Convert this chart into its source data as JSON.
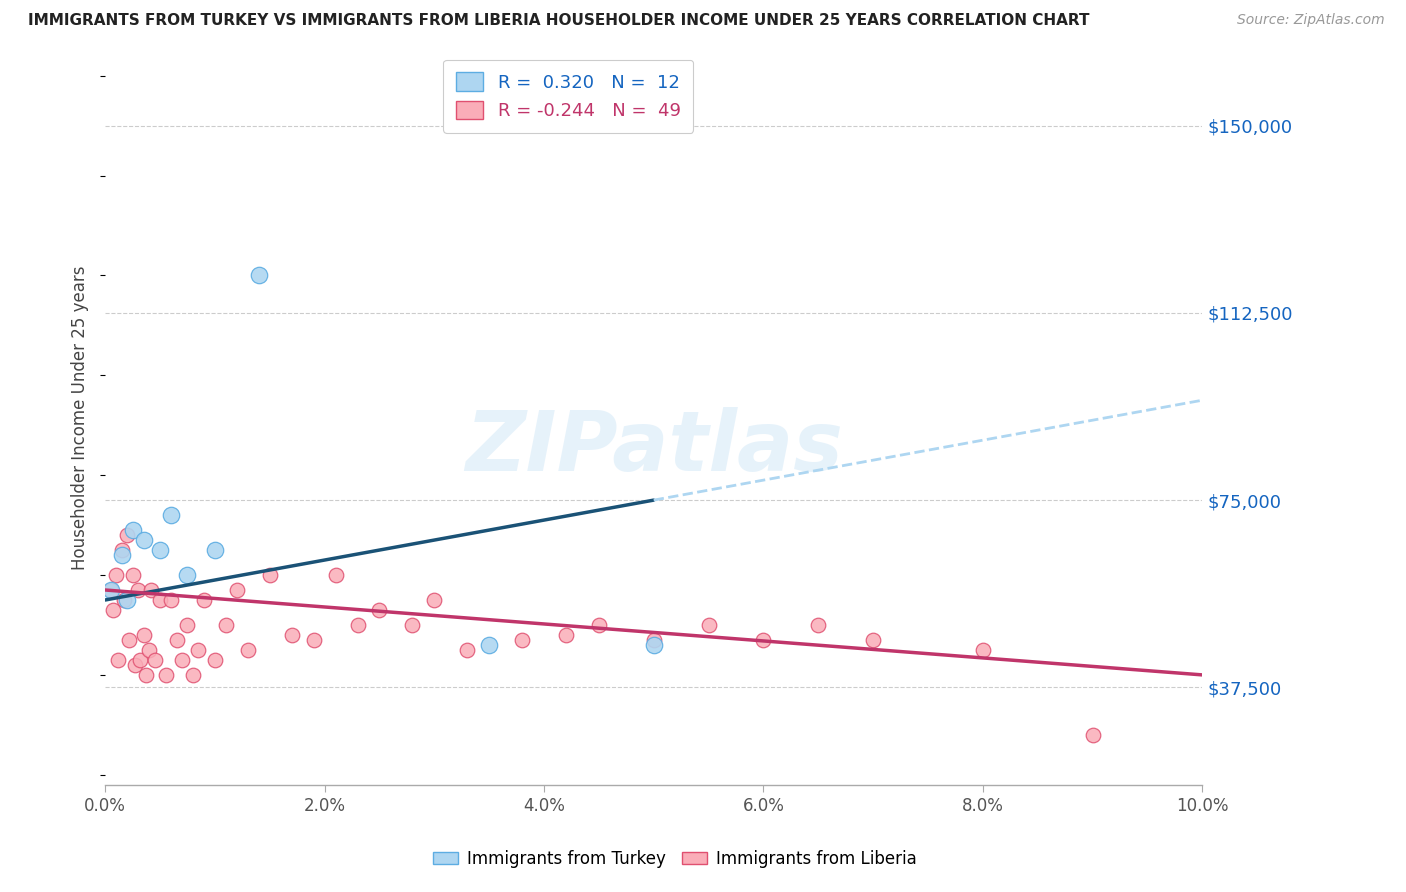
{
  "title": "IMMIGRANTS FROM TURKEY VS IMMIGRANTS FROM LIBERIA HOUSEHOLDER INCOME UNDER 25 YEARS CORRELATION CHART",
  "source": "Source: ZipAtlas.com",
  "ylabel": "Householder Income Under 25 years",
  "turkey_color": "#AED6F1",
  "turkey_edge_color": "#5DADE2",
  "liberia_color": "#FAADB8",
  "liberia_edge_color": "#E05070",
  "turkey_line_color": "#1A5276",
  "liberia_line_color": "#C0356A",
  "turkey_dash_color": "#AED6F1",
  "watermark_text": "ZIPatlas",
  "R_turkey": 0.32,
  "N_turkey": 12,
  "R_liberia": -0.244,
  "N_liberia": 49,
  "xlim": [
    0.0,
    10.0
  ],
  "ylim": [
    18000,
    165000
  ],
  "yticks": [
    37500,
    75000,
    112500,
    150000
  ],
  "ytick_labels": [
    "$37,500",
    "$75,000",
    "$112,500",
    "$150,000"
  ],
  "xticks": [
    0.0,
    2.0,
    4.0,
    6.0,
    8.0,
    10.0
  ],
  "xtick_labels": [
    "0.0%",
    "2.0%",
    "4.0%",
    "6.0%",
    "8.0%",
    "10.0%"
  ],
  "turkey_x": [
    0.05,
    0.15,
    0.2,
    0.25,
    0.35,
    0.5,
    0.6,
    0.75,
    1.0,
    1.4,
    3.5,
    5.0
  ],
  "turkey_y": [
    57000,
    64000,
    55000,
    69000,
    67000,
    65000,
    72000,
    60000,
    65000,
    120000,
    46000,
    46000
  ],
  "liberia_x": [
    0.05,
    0.07,
    0.1,
    0.12,
    0.15,
    0.17,
    0.2,
    0.22,
    0.25,
    0.27,
    0.3,
    0.32,
    0.35,
    0.37,
    0.4,
    0.42,
    0.45,
    0.5,
    0.55,
    0.6,
    0.65,
    0.7,
    0.75,
    0.8,
    0.85,
    0.9,
    1.0,
    1.1,
    1.2,
    1.3,
    1.5,
    1.7,
    1.9,
    2.1,
    2.3,
    2.5,
    2.8,
    3.0,
    3.3,
    3.8,
    4.2,
    4.5,
    5.0,
    5.5,
    6.0,
    6.5,
    7.0,
    8.0,
    9.0
  ],
  "liberia_y": [
    57000,
    53000,
    60000,
    43000,
    65000,
    55000,
    68000,
    47000,
    60000,
    42000,
    57000,
    43000,
    48000,
    40000,
    45000,
    57000,
    43000,
    55000,
    40000,
    55000,
    47000,
    43000,
    50000,
    40000,
    45000,
    55000,
    43000,
    50000,
    57000,
    45000,
    60000,
    48000,
    47000,
    60000,
    50000,
    53000,
    50000,
    55000,
    45000,
    47000,
    48000,
    50000,
    47000,
    50000,
    47000,
    50000,
    47000,
    45000,
    28000
  ],
  "turkey_trend_x0": 0.0,
  "turkey_trend_y0": 55000,
  "turkey_trend_x1": 5.0,
  "turkey_trend_y1": 75000,
  "turkey_dash_x0": 5.0,
  "turkey_dash_y0": 75000,
  "turkey_dash_x1": 10.0,
  "turkey_dash_y1": 95000,
  "liberia_trend_x0": 0.0,
  "liberia_trend_y0": 57000,
  "liberia_trend_x1": 10.0,
  "liberia_trend_y1": 40000
}
